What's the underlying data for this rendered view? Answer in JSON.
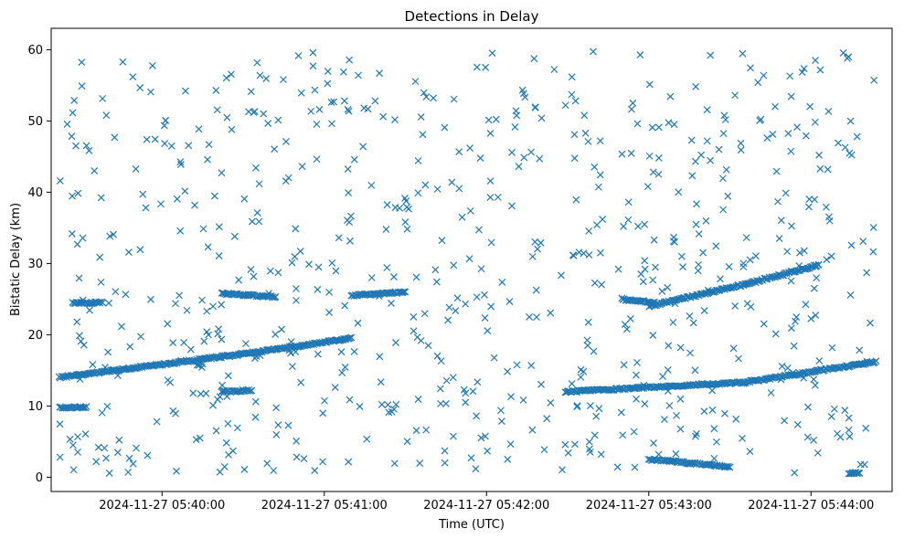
{
  "chart_data": {
    "type": "scatter",
    "title": "Detections in Delay",
    "xlabel": "Time (UTC)",
    "ylabel": "Bistatic Delay (km)",
    "marker": "x",
    "color": "#1f77b4",
    "grid": false,
    "legend": "none",
    "xlim": [
      "2024-11-27 05:39:19",
      "2024-11-27 05:44:30"
    ],
    "ylim": [
      -2,
      63
    ],
    "x_ticks": [
      "2024-11-27 05:40:00",
      "2024-11-27 05:41:00",
      "2024-11-27 05:42:00",
      "2024-11-27 05:43:00",
      "2024-11-27 05:44:00"
    ],
    "y_ticks": [
      0,
      10,
      20,
      30,
      40,
      50,
      60
    ],
    "tracks": [
      {
        "x": [
          "2024-11-27 05:39:22",
          "2024-11-27 05:40:30",
          "2024-11-27 05:41:10"
        ],
        "y": [
          14.0,
          17.3,
          19.5
        ]
      },
      {
        "x": [
          "2024-11-27 05:41:10",
          "2024-11-27 05:41:30"
        ],
        "y": [
          25.5,
          26.0
        ]
      },
      {
        "x": [
          "2024-11-27 05:39:27",
          "2024-11-27 05:39:38"
        ],
        "y": [
          24.5,
          24.5
        ]
      },
      {
        "x": [
          "2024-11-27 05:39:22",
          "2024-11-27 05:39:32"
        ],
        "y": [
          9.8,
          9.8
        ]
      },
      {
        "x": [
          "2024-11-27 05:40:22",
          "2024-11-27 05:40:42"
        ],
        "y": [
          25.8,
          25.3
        ]
      },
      {
        "x": [
          "2024-11-27 05:40:22",
          "2024-11-27 05:40:33"
        ],
        "y": [
          12.0,
          12.2
        ]
      },
      {
        "x": [
          "2024-11-27 05:42:29",
          "2024-11-27 05:43:35",
          "2024-11-27 05:44:24"
        ],
        "y": [
          12.0,
          13.3,
          16.2
        ]
      },
      {
        "x": [
          "2024-11-27 05:43:00",
          "2024-11-27 05:43:35",
          "2024-11-27 05:44:03"
        ],
        "y": [
          24.0,
          27.0,
          29.8
        ]
      },
      {
        "x": [
          "2024-11-27 05:42:50",
          "2024-11-27 05:43:02"
        ],
        "y": [
          25.0,
          24.5
        ]
      },
      {
        "x": [
          "2024-11-27 05:43:00",
          "2024-11-27 05:43:30"
        ],
        "y": [
          2.5,
          1.5
        ]
      },
      {
        "x": [
          "2024-11-27 05:44:14",
          "2024-11-27 05:44:18"
        ],
        "y": [
          0.6,
          0.6
        ]
      }
    ],
    "clutter": {
      "x_range": [
        "2024-11-27 05:39:22",
        "2024-11-27 05:44:24"
      ],
      "y_range": [
        0.5,
        59.8
      ],
      "count": 700
    }
  }
}
